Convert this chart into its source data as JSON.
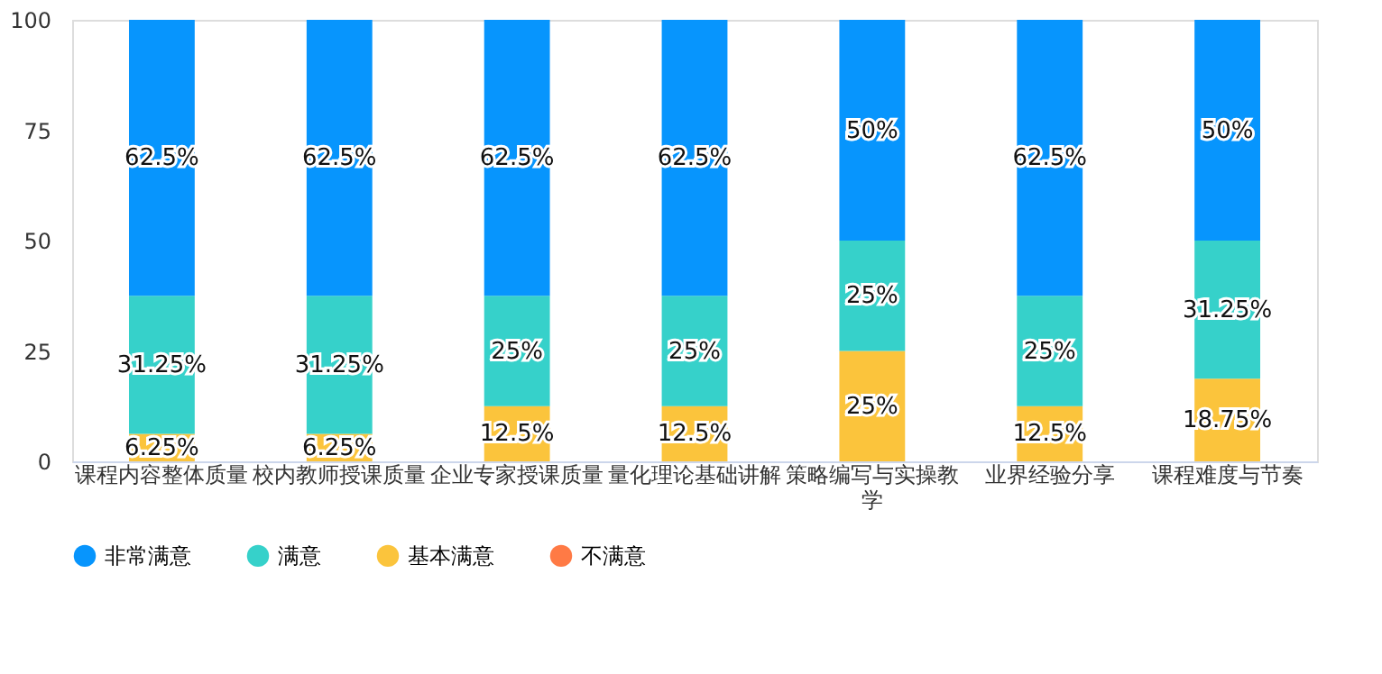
{
  "chart_data": {
    "type": "bar",
    "stacked": true,
    "categories": [
      "课程内容整体质量",
      "校内教师授课质量",
      "企业专家授课质量",
      "量化理论基础讲解",
      "策略编写与实操教学",
      "业界经验分享",
      "课程难度与节奏"
    ],
    "series": [
      {
        "name": "不满意",
        "color": "#ff7a45",
        "values": [
          0,
          0,
          0,
          0,
          0,
          0,
          0
        ],
        "value_labels": [
          null,
          null,
          null,
          null,
          null,
          null,
          null
        ]
      },
      {
        "name": "基本满意",
        "color": "#fbc43c",
        "values": [
          6.25,
          6.25,
          12.5,
          12.5,
          25,
          12.5,
          18.75
        ],
        "value_labels": [
          "6.25%",
          "6.25%",
          "12.5%",
          "12.5%",
          "25%",
          "12.5%",
          "18.75%"
        ]
      },
      {
        "name": "满意",
        "color": "#36d1ca",
        "values": [
          31.25,
          31.25,
          25,
          25,
          25,
          25,
          31.25
        ],
        "value_labels": [
          "31.25%",
          "31.25%",
          "25%",
          "25%",
          "25%",
          "25%",
          "31.25%"
        ]
      },
      {
        "name": "非常满意",
        "color": "#0795fd",
        "values": [
          62.5,
          62.5,
          62.5,
          62.5,
          50,
          62.5,
          50
        ],
        "value_labels": [
          "62.5%",
          "62.5%",
          "62.5%",
          "62.5%",
          "50%",
          "62.5%",
          "50%"
        ]
      }
    ],
    "ylim": [
      0,
      100
    ],
    "yticks": [
      0,
      25,
      50,
      75,
      100
    ],
    "grid": false,
    "legend": "bottom"
  }
}
